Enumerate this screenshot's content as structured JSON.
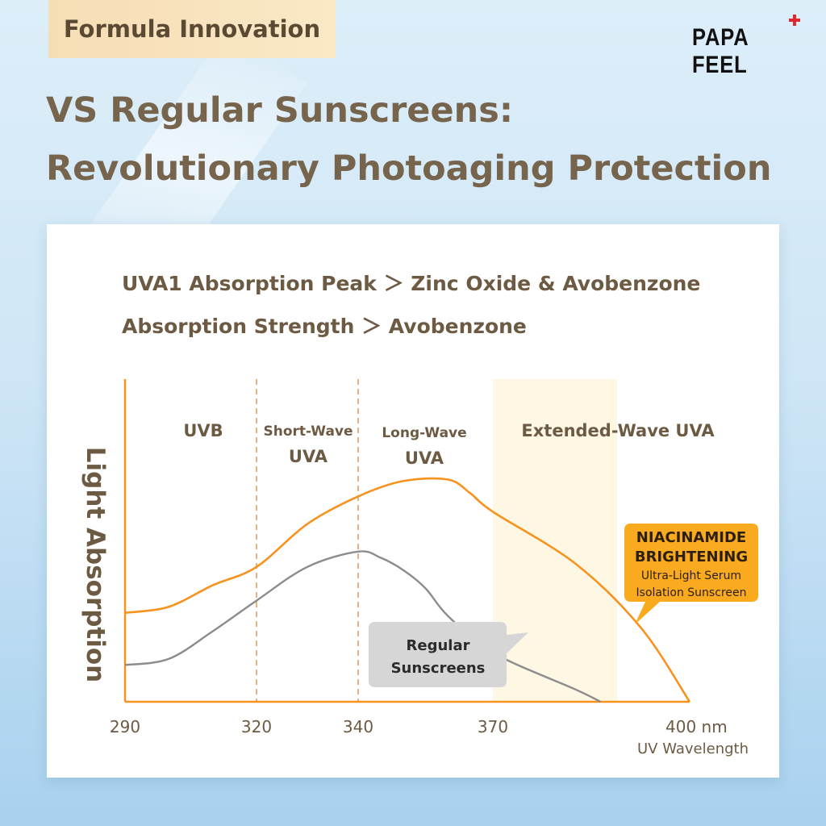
{
  "tag": "Formula Innovation",
  "brand": "PAPA FEEL",
  "headline": {
    "line1": "VS Regular Sunscreens:",
    "line2": "Revolutionary Photoaging Protection"
  },
  "subtitles": [
    "UVA1 Absorption Peak ＞ Zinc Oxide & Avobenzone",
    "Absorption Strength ＞ Avobenzone"
  ],
  "colors": {
    "orange": "#f7921e",
    "gray": "#8c8c8c",
    "brown": "#76644c",
    "highlight": "#fdf7e4",
    "callout_orange": "#faaa1e",
    "callout_gray": "#d6d6d6"
  },
  "chart_data": {
    "type": "line",
    "ylabel": "Light Absorption",
    "xlabel": "UV Wavelength",
    "x_unit": "nm",
    "x_ticks": [
      {
        "value": 290,
        "label": "290"
      },
      {
        "value": 320,
        "label": "320"
      },
      {
        "value": 340,
        "label": "340"
      },
      {
        "value": 370,
        "label": "370"
      },
      {
        "value": 400,
        "label": "400 nm"
      }
    ],
    "xlim": [
      290,
      400
    ],
    "ylim": [
      0,
      1
    ],
    "regions": [
      {
        "label": "UVB",
        "lines": [
          "UVB"
        ]
      },
      {
        "label": "Short-Wave UVA",
        "lines": [
          "Short-Wave",
          "UVA"
        ]
      },
      {
        "label": "Long-Wave UVA",
        "lines": [
          "Long-Wave",
          "UVA"
        ]
      },
      {
        "label": "Extended-Wave UVA",
        "lines": [
          "Extended-Wave UVA"
        ]
      }
    ],
    "region_dividers": [
      320,
      340
    ],
    "highlight_range": [
      370,
      385
    ],
    "series": [
      {
        "name": "NIACINAMIDE BRIGHTENING Ultra-Light Serum Isolation Sunscreen",
        "color": "#f7921e",
        "points": [
          [
            290,
            0.29
          ],
          [
            300,
            0.31
          ],
          [
            310,
            0.38
          ],
          [
            320,
            0.44
          ],
          [
            330,
            0.58
          ],
          [
            340,
            0.67
          ],
          [
            350,
            0.72
          ],
          [
            360,
            0.725
          ],
          [
            365,
            0.68
          ],
          [
            370,
            0.62
          ],
          [
            380,
            0.45
          ],
          [
            390,
            0.24
          ],
          [
            400,
            0.0
          ]
        ]
      },
      {
        "name": "Regular Sunscreens",
        "color": "#8c8c8c",
        "points": [
          [
            290,
            0.12
          ],
          [
            300,
            0.14
          ],
          [
            310,
            0.23
          ],
          [
            320,
            0.33
          ],
          [
            330,
            0.44
          ],
          [
            340,
            0.49
          ],
          [
            345,
            0.47
          ],
          [
            350,
            0.43
          ],
          [
            355,
            0.37
          ],
          [
            360,
            0.28
          ],
          [
            370,
            0.16
          ],
          [
            380,
            0.04
          ],
          [
            383,
            0.0
          ]
        ]
      }
    ],
    "callouts": {
      "orange": [
        "NIACINAMIDE",
        "BRIGHTENING",
        "Ultra-Light Serum",
        "Isolation Sunscreen"
      ],
      "gray": [
        "Regular",
        "Sunscreens"
      ]
    }
  }
}
